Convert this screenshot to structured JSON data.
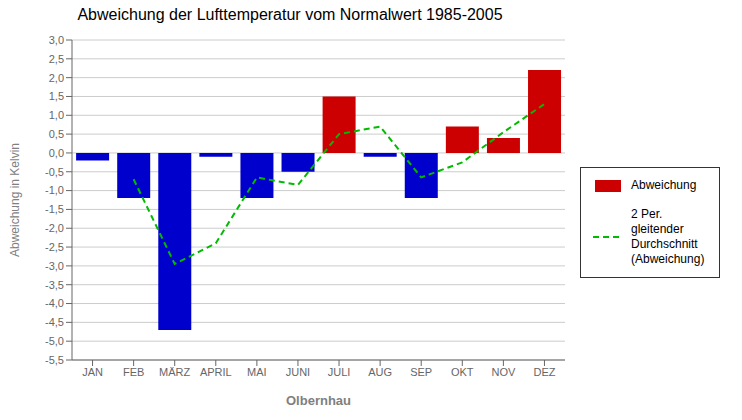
{
  "chart_data": {
    "type": "bar",
    "title": "Abweichung der Lufttemperatur vom Normalwert 1985-2005",
    "xlabel": "Olbernhau",
    "ylabel": "Abweichung in Kelvin",
    "categories": [
      "JAN",
      "FEB",
      "MÄRZ",
      "APRIL",
      "MAI",
      "JUNI",
      "JULI",
      "AUG",
      "SEP",
      "OKT",
      "NOV",
      "DEZ"
    ],
    "series": [
      {
        "name": "Abweichung",
        "type": "bar",
        "color": "#cc0000",
        "colors": [
          "#0000cc",
          "#0000cc",
          "#0000cc",
          "#0000cc",
          "#0000cc",
          "#0000cc",
          "#cc0000",
          "#0000cc",
          "#0000cc",
          "#cc0000",
          "#cc0000",
          "#cc0000"
        ],
        "values": [
          -0.2,
          -1.2,
          -4.7,
          -0.1,
          -1.2,
          -0.5,
          1.5,
          -0.1,
          -1.2,
          0.7,
          0.4,
          2.2
        ]
      },
      {
        "name": "2 Per.\ngleitender\nDurchschnitt\n(Abweichung)",
        "type": "line",
        "color": "#00bb00",
        "line_style": "dashed",
        "values": [
          null,
          -0.7,
          -2.95,
          -2.4,
          -0.65,
          -0.85,
          0.5,
          0.7,
          -0.65,
          -0.25,
          0.55,
          1.3
        ]
      }
    ],
    "ylim": [
      -5.5,
      3.0
    ],
    "yticks": [
      {
        "value": 3.0,
        "label": "3,0"
      },
      {
        "value": 2.5,
        "label": "2,5"
      },
      {
        "value": 2.0,
        "label": "2,0"
      },
      {
        "value": 1.5,
        "label": "1,5"
      },
      {
        "value": 1.0,
        "label": "1,0"
      },
      {
        "value": 0.5,
        "label": "0,5"
      },
      {
        "value": 0.0,
        "label": "0,0"
      },
      {
        "value": -0.5,
        "label": "-0,5"
      },
      {
        "value": -1.0,
        "label": "-1,0"
      },
      {
        "value": -1.5,
        "label": "-1,5"
      },
      {
        "value": -2.0,
        "label": "-2,0"
      },
      {
        "value": -2.5,
        "label": "-2,5"
      },
      {
        "value": -3.0,
        "label": "-3,0"
      },
      {
        "value": -3.5,
        "label": "-3,5"
      },
      {
        "value": -4.0,
        "label": "-4,0"
      },
      {
        "value": -4.5,
        "label": "-4,5"
      },
      {
        "value": -5.0,
        "label": "-5,0"
      },
      {
        "value": -5.5,
        "label": "-5,5"
      }
    ],
    "grid": true,
    "legend": "right"
  }
}
